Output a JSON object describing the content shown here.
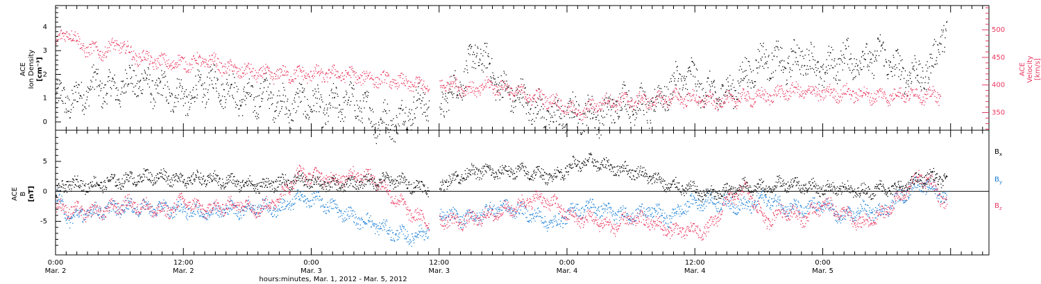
{
  "colors": {
    "black": "#000000",
    "pink": "#e8365e",
    "blue": "#1a7fd6"
  },
  "chart_data": [
    {
      "type": "scatter",
      "panel": "top",
      "ylabel_left": [
        "ACE",
        "Ion Density",
        "[cm⁻³]"
      ],
      "ylabel_right": [
        "ACE",
        "Velocity",
        "[km/s]"
      ],
      "y_left_ticks": [
        "0",
        "1",
        "2",
        "3",
        "4"
      ],
      "y_left_range": [
        -0.35,
        4.9
      ],
      "y_right_ticks": [
        "350",
        "400",
        "450",
        "500"
      ],
      "y_right_range": [
        318,
        544
      ],
      "series": [
        {
          "axis": "left",
          "color": "#000000",
          "anchors": [
            [
              0.0,
              1.0
            ],
            [
              0.15,
              0.9
            ],
            [
              0.3,
              1.6
            ],
            [
              0.45,
              1.3
            ],
            [
              0.6,
              1.8
            ],
            [
              0.75,
              1.5
            ],
            [
              0.9,
              1.2
            ],
            [
              1.05,
              1.0
            ],
            [
              1.2,
              1.7
            ],
            [
              1.35,
              1.4
            ],
            [
              1.5,
              0.9
            ],
            [
              1.65,
              1.2
            ],
            [
              1.8,
              0.6
            ],
            [
              1.95,
              0.9
            ],
            [
              2.1,
              0.5
            ],
            [
              2.25,
              0.9
            ],
            [
              2.4,
              0.7
            ],
            [
              2.5,
              0.05
            ],
            [
              2.7,
              0.05
            ],
            [
              2.8,
              0.7
            ],
            [
              2.92,
              0.8
            ],
            [
              2.93,
              null
            ],
            [
              3.0,
              0.9
            ],
            [
              3.1,
              1.2
            ],
            [
              3.2,
              2.0
            ],
            [
              3.3,
              3.0
            ],
            [
              3.4,
              2.2
            ],
            [
              3.5,
              1.3
            ],
            [
              3.6,
              1.1
            ],
            [
              3.7,
              0.8
            ],
            [
              3.8,
              0.4
            ],
            [
              3.9,
              0.2
            ],
            [
              4.0,
              0.3
            ],
            [
              4.1,
              0.4
            ],
            [
              4.2,
              0.3
            ],
            [
              4.3,
              0.3
            ],
            [
              4.4,
              0.9
            ],
            [
              4.5,
              0.8
            ],
            [
              4.65,
              0.6
            ],
            [
              4.8,
              1.4
            ],
            [
              4.95,
              2.0
            ],
            [
              5.1,
              1.2
            ],
            [
              5.25,
              1.2
            ],
            [
              5.4,
              2.0
            ],
            [
              5.55,
              2.7
            ],
            [
              5.7,
              2.4
            ],
            [
              5.85,
              2.8
            ],
            [
              6.0,
              2.1
            ],
            [
              6.15,
              2.7
            ],
            [
              6.3,
              2.5
            ],
            [
              6.45,
              2.9
            ],
            [
              6.6,
              2.1
            ],
            [
              6.75,
              2.0
            ],
            [
              6.85,
              2.2
            ],
            [
              6.92,
              3.8
            ],
            [
              6.97,
              3.5
            ]
          ]
        },
        {
          "axis": "right",
          "color": "#e8365e",
          "anchors": [
            [
              0.0,
              475
            ],
            [
              0.1,
              500
            ],
            [
              0.2,
              470
            ],
            [
              0.35,
              460
            ],
            [
              0.5,
              475
            ],
            [
              0.6,
              455
            ],
            [
              0.75,
              445
            ],
            [
              0.9,
              440
            ],
            [
              1.05,
              440
            ],
            [
              1.2,
              445
            ],
            [
              1.35,
              430
            ],
            [
              1.5,
              425
            ],
            [
              1.65,
              420
            ],
            [
              1.8,
              420
            ],
            [
              1.95,
              420
            ],
            [
              2.1,
              420
            ],
            [
              2.25,
              420
            ],
            [
              2.4,
              415
            ],
            [
              2.55,
              410
            ],
            [
              2.7,
              405
            ],
            [
              2.85,
              400
            ],
            [
              2.92,
              395
            ],
            [
              2.93,
              null
            ],
            [
              3.0,
              405
            ],
            [
              3.1,
              402
            ],
            [
              3.25,
              390
            ],
            [
              3.4,
              400
            ],
            [
              3.55,
              392
            ],
            [
              3.7,
              380
            ],
            [
              3.85,
              375
            ],
            [
              4.0,
              360
            ],
            [
              4.1,
              348
            ],
            [
              4.25,
              368
            ],
            [
              4.4,
              372
            ],
            [
              4.55,
              372
            ],
            [
              4.7,
              372
            ],
            [
              4.85,
              378
            ],
            [
              5.0,
              375
            ],
            [
              5.15,
              370
            ],
            [
              5.3,
              375
            ],
            [
              5.45,
              378
            ],
            [
              5.6,
              382
            ],
            [
              5.75,
              390
            ],
            [
              5.9,
              388
            ],
            [
              6.05,
              385
            ],
            [
              6.2,
              386
            ],
            [
              6.35,
              382
            ],
            [
              6.5,
              380
            ],
            [
              6.65,
              385
            ],
            [
              6.8,
              382
            ],
            [
              6.92,
              380
            ]
          ]
        }
      ]
    },
    {
      "type": "scatter",
      "panel": "bottom",
      "ylabel_left": [
        "ACE",
        "B",
        "[nT]"
      ],
      "y_ticks": [
        "-5",
        "0",
        "5"
      ],
      "y_range": [
        -10.6,
        10.2
      ],
      "legend": [
        {
          "label": "B",
          "sub": "x",
          "color": "#000000"
        },
        {
          "label": "B",
          "sub": "y",
          "color": "#1a7fd6"
        },
        {
          "label": "B",
          "sub": "z",
          "color": "#e8365e"
        }
      ],
      "series": [
        {
          "name": "Bx",
          "color": "#000000",
          "anchors": [
            [
              0.0,
              -0.5
            ],
            [
              0.1,
              1.5
            ],
            [
              0.25,
              1.0
            ],
            [
              0.4,
              1.5
            ],
            [
              0.55,
              2.0
            ],
            [
              0.7,
              2.5
            ],
            [
              0.85,
              2.5
            ],
            [
              1.0,
              2.0
            ],
            [
              1.15,
              2.2
            ],
            [
              1.3,
              1.8
            ],
            [
              1.45,
              1.5
            ],
            [
              1.6,
              1.0
            ],
            [
              1.75,
              1.5
            ],
            [
              1.9,
              2.0
            ],
            [
              2.05,
              1.5
            ],
            [
              2.2,
              1.0
            ],
            [
              2.35,
              1.5
            ],
            [
              2.5,
              1.8
            ],
            [
              2.65,
              2.0
            ],
            [
              2.8,
              1.0
            ],
            [
              2.92,
              0.5
            ],
            [
              2.93,
              null
            ],
            [
              3.0,
              1.2
            ],
            [
              3.15,
              2.5
            ],
            [
              3.3,
              3.5
            ],
            [
              3.45,
              3.2
            ],
            [
              3.6,
              3.5
            ],
            [
              3.75,
              3.0
            ],
            [
              3.9,
              2.5
            ],
            [
              4.05,
              4.5
            ],
            [
              4.2,
              5.0
            ],
            [
              4.35,
              4.0
            ],
            [
              4.5,
              3.5
            ],
            [
              4.65,
              2.5
            ],
            [
              4.8,
              1.0
            ],
            [
              4.95,
              0.5
            ],
            [
              5.1,
              -0.5
            ],
            [
              5.25,
              0.0
            ],
            [
              5.4,
              1.0
            ],
            [
              5.55,
              0.5
            ],
            [
              5.7,
              1.5
            ],
            [
              5.85,
              1.0
            ],
            [
              6.0,
              0.5
            ],
            [
              6.15,
              0.5
            ],
            [
              6.3,
              0.0
            ],
            [
              6.45,
              0.5
            ],
            [
              6.6,
              0.5
            ],
            [
              6.75,
              2.0
            ],
            [
              6.85,
              2.5
            ],
            [
              6.97,
              2.0
            ]
          ]
        },
        {
          "name": "By",
          "color": "#1a7fd6",
          "anchors": [
            [
              0.0,
              -0.5
            ],
            [
              0.1,
              -4.5
            ],
            [
              0.25,
              -3.5
            ],
            [
              0.4,
              -3.0
            ],
            [
              0.55,
              -2.5
            ],
            [
              0.7,
              -2.8
            ],
            [
              0.85,
              -2.8
            ],
            [
              1.0,
              -3.0
            ],
            [
              1.15,
              -3.5
            ],
            [
              1.3,
              -3.0
            ],
            [
              1.45,
              -3.0
            ],
            [
              1.6,
              -2.5
            ],
            [
              1.75,
              -3.0
            ],
            [
              1.9,
              -1.0
            ],
            [
              2.05,
              -1.5
            ],
            [
              2.2,
              -3.0
            ],
            [
              2.35,
              -4.5
            ],
            [
              2.5,
              -5.5
            ],
            [
              2.65,
              -7.0
            ],
            [
              2.8,
              -7.5
            ],
            [
              2.92,
              -6.5
            ],
            [
              2.93,
              null
            ],
            [
              3.0,
              -3.5
            ],
            [
              3.15,
              -4.5
            ],
            [
              3.3,
              -4.0
            ],
            [
              3.45,
              -2.5
            ],
            [
              3.6,
              -3.0
            ],
            [
              3.75,
              -4.0
            ],
            [
              3.9,
              -5.5
            ],
            [
              4.05,
              -3.0
            ],
            [
              4.2,
              -2.5
            ],
            [
              4.35,
              -3.5
            ],
            [
              4.5,
              -4.0
            ],
            [
              4.65,
              -3.0
            ],
            [
              4.8,
              -4.5
            ],
            [
              4.95,
              -2.0
            ],
            [
              5.1,
              -1.5
            ],
            [
              5.25,
              -2.0
            ],
            [
              5.4,
              -2.5
            ],
            [
              5.55,
              -1.0
            ],
            [
              5.7,
              -2.5
            ],
            [
              5.85,
              -3.0
            ],
            [
              6.0,
              -2.0
            ],
            [
              6.15,
              -4.5
            ],
            [
              6.3,
              -3.0
            ],
            [
              6.45,
              -3.5
            ],
            [
              6.6,
              -1.0
            ],
            [
              6.75,
              1.5
            ],
            [
              6.85,
              0.5
            ],
            [
              6.97,
              -1.0
            ]
          ]
        },
        {
          "name": "Bz",
          "color": "#e8365e",
          "anchors": [
            [
              0.0,
              -2.5
            ],
            [
              0.1,
              -3.0
            ],
            [
              0.25,
              -3.5
            ],
            [
              0.4,
              -3.0
            ],
            [
              0.55,
              -2.0
            ],
            [
              0.7,
              -2.5
            ],
            [
              0.85,
              -3.5
            ],
            [
              1.0,
              -1.5
            ],
            [
              1.15,
              -3.0
            ],
            [
              1.3,
              -2.5
            ],
            [
              1.45,
              -2.0
            ],
            [
              1.6,
              -3.0
            ],
            [
              1.75,
              -1.0
            ],
            [
              1.9,
              3.0
            ],
            [
              2.05,
              2.5
            ],
            [
              2.2,
              2.0
            ],
            [
              2.35,
              3.0
            ],
            [
              2.5,
              2.0
            ],
            [
              2.65,
              -1.0
            ],
            [
              2.8,
              -4.0
            ],
            [
              2.92,
              -5.0
            ],
            [
              2.93,
              null
            ],
            [
              3.0,
              -4.5
            ],
            [
              3.15,
              -5.0
            ],
            [
              3.3,
              -4.5
            ],
            [
              3.45,
              -3.5
            ],
            [
              3.6,
              -2.5
            ],
            [
              3.75,
              -1.0
            ],
            [
              3.9,
              -2.0
            ],
            [
              4.05,
              -4.5
            ],
            [
              4.2,
              -4.5
            ],
            [
              4.35,
              -6.0
            ],
            [
              4.5,
              -4.5
            ],
            [
              4.65,
              -5.0
            ],
            [
              4.8,
              -6.5
            ],
            [
              4.95,
              -6.5
            ],
            [
              5.1,
              -6.5
            ],
            [
              5.25,
              -1.5
            ],
            [
              5.4,
              0.5
            ],
            [
              5.55,
              -5.0
            ],
            [
              5.7,
              -3.0
            ],
            [
              5.85,
              -4.5
            ],
            [
              6.0,
              -2.0
            ],
            [
              6.15,
              -3.5
            ],
            [
              6.3,
              -5.5
            ],
            [
              6.45,
              -4.0
            ],
            [
              6.6,
              -1.0
            ],
            [
              6.75,
              2.5
            ],
            [
              6.85,
              1.5
            ],
            [
              6.97,
              -2.5
            ]
          ]
        }
      ]
    }
  ],
  "x_axis": {
    "range_days": [
      0,
      7.3
    ],
    "major_ticks": [
      {
        "time": "0:00",
        "date": "Mar. 2",
        "day": 0
      },
      {
        "time": "12:00",
        "date": "Mar. 2",
        "day": 1
      },
      {
        "time": "0:00",
        "date": "Mar. 3",
        "day": 2
      },
      {
        "time": "12:00",
        "date": "Mar. 3",
        "day": 3
      },
      {
        "time": "0:00",
        "date": "Mar. 4",
        "day": 4
      },
      {
        "time": "12:00",
        "date": "Mar. 4",
        "day": 5
      },
      {
        "time": "0:00",
        "date": "Mar. 5",
        "day": 6
      }
    ],
    "title": "hours:minutes, Mar.  1, 2012 - Mar.  5, 2012"
  }
}
